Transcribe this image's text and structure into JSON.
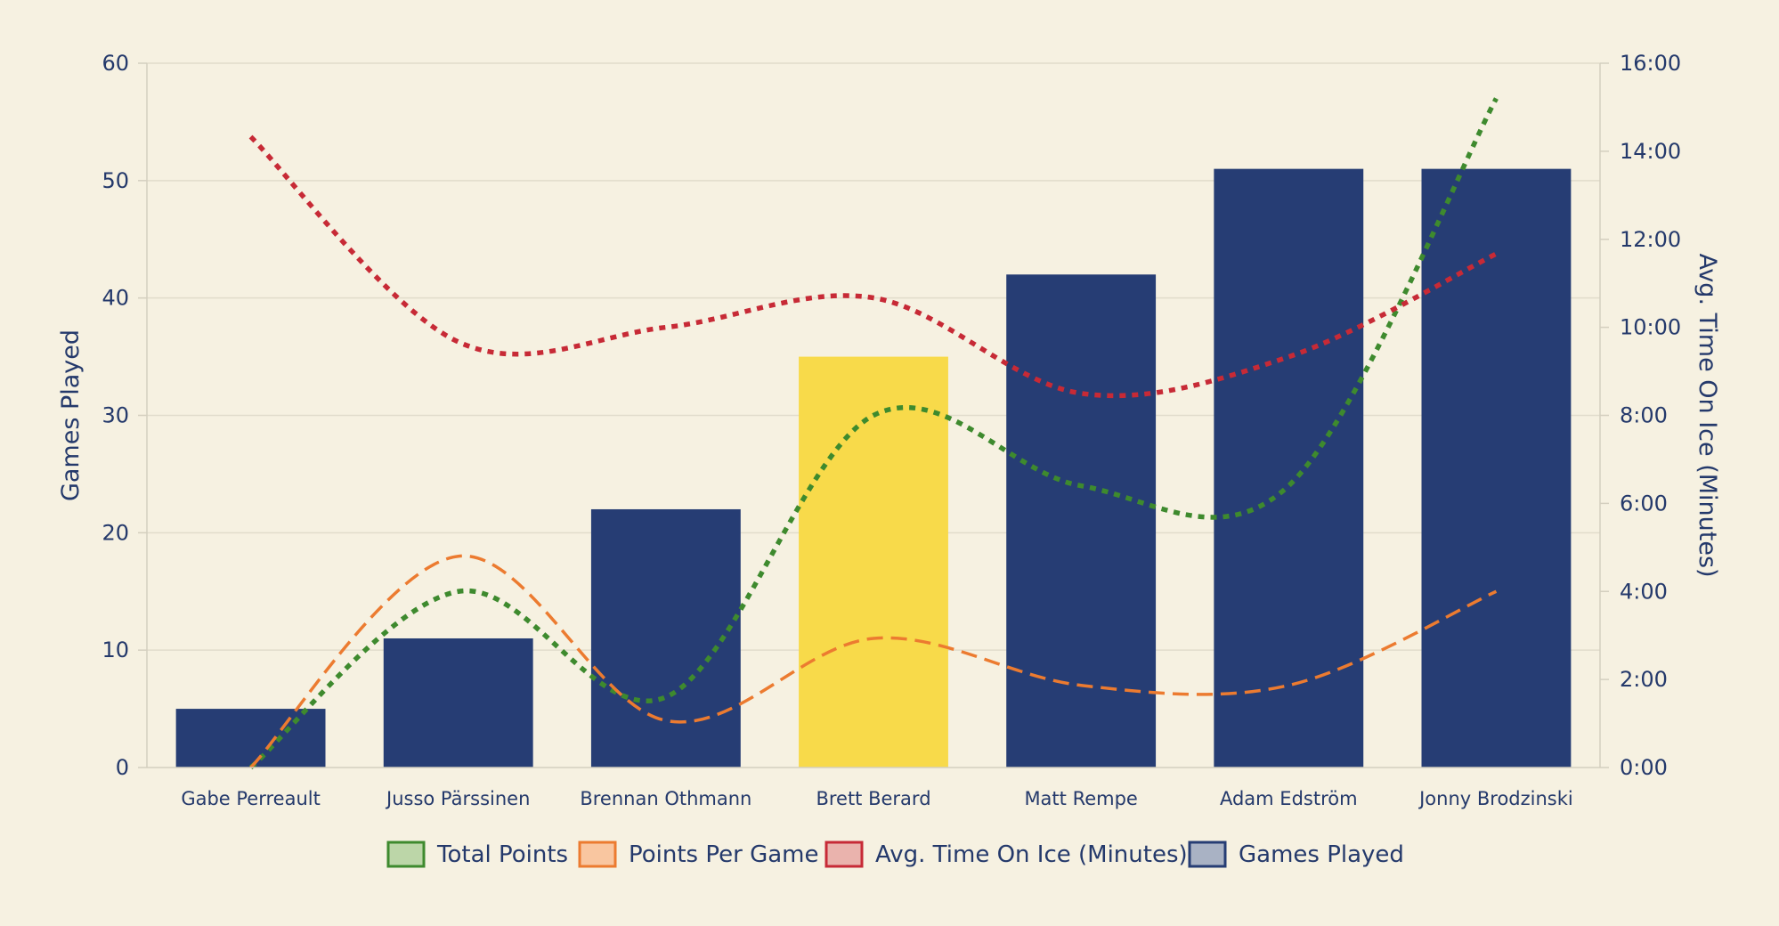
{
  "chart_data": {
    "type": "bar",
    "categories": [
      "Gabe Perreault",
      "Jusso Pärssinen",
      "Brennan Othmann",
      "Brett Berard",
      "Matt Rempe",
      "Adam Edström",
      "Jonny Brodzinski"
    ],
    "title": "",
    "ylabel": "Games Played",
    "y2label": "Avg. Time On Ice (Minutes)",
    "ylim": [
      0,
      60
    ],
    "y_ticks": [
      "0",
      "10",
      "20",
      "30",
      "40",
      "50",
      "60"
    ],
    "y2lim": [
      0,
      16
    ],
    "y2_ticks": [
      "0:00",
      "2:00",
      "4:00",
      "6:00",
      "8:00",
      "10:00",
      "12:00",
      "14:00",
      "16:00"
    ],
    "grid": true,
    "legend_position": "bottom",
    "highlight_index": 3,
    "series": [
      {
        "name": "Games Played",
        "kind": "bar",
        "axis": "left",
        "values": [
          5,
          11,
          22,
          35,
          42,
          51,
          51
        ],
        "color": "#263d74",
        "highlight_color": "#f8da4a"
      },
      {
        "name": "Total Points",
        "kind": "line",
        "style": "dotted",
        "axis": "left",
        "values": [
          0,
          15,
          6,
          30,
          24,
          24,
          57
        ],
        "color": "#3e8a2e"
      },
      {
        "name": "Points Per Game",
        "kind": "line",
        "style": "dashed",
        "axis": "left",
        "values": [
          0,
          18,
          4,
          11,
          7,
          7,
          15
        ],
        "color": "#ec7b30"
      },
      {
        "name": "Avg. Time On Ice (Minutes)",
        "kind": "line",
        "style": "dotted",
        "axis": "right",
        "values": [
          14.33,
          9.67,
          10.0,
          10.67,
          8.5,
          9.33,
          11.67
        ],
        "color": "#c72a36"
      }
    ],
    "legend": [
      {
        "label": "Total Points",
        "fill": "#bcd6a8",
        "stroke": "#3e8a2e"
      },
      {
        "label": "Points Per Game",
        "fill": "#f9c6a0",
        "stroke": "#ec7b30"
      },
      {
        "label": "Avg. Time On Ice (Minutes)",
        "fill": "#eab3ad",
        "stroke": "#c72a36"
      },
      {
        "label": "Games Played",
        "fill": "#a9b2c4",
        "stroke": "#263d74"
      }
    ]
  }
}
